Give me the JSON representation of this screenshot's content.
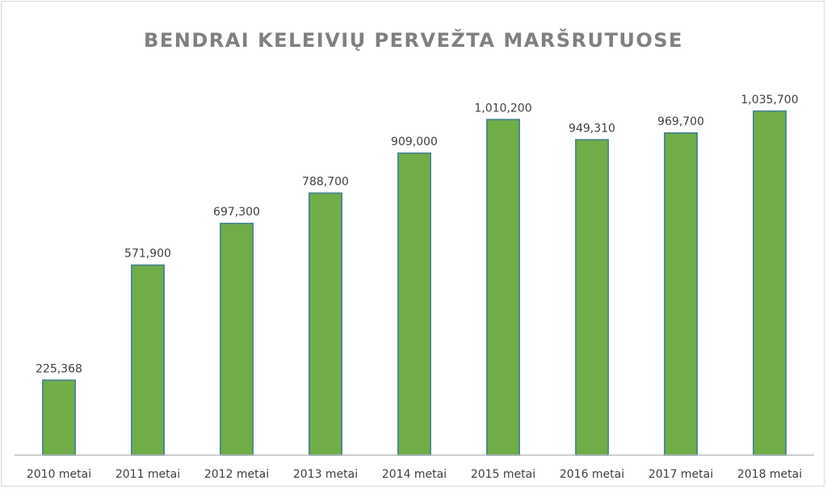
{
  "chart_data": {
    "type": "bar",
    "title": "BENDRAI KELEIVIŲ PERVEŽTA MARŠRUTUOSE",
    "xlabel": "",
    "ylabel": "",
    "categories": [
      "2010 metai",
      "2011 metai",
      "2012 metai",
      "2013 metai",
      "2014 metai",
      "2015 metai",
      "2016 metai",
      "2017 metai",
      "2018 metai"
    ],
    "values": [
      225368,
      571900,
      697300,
      788700,
      909000,
      1010200,
      949310,
      969700,
      1035700
    ],
    "value_labels": [
      "225,368",
      "571,900",
      "697,300",
      "788,700",
      "909,000",
      "1,010,200",
      "949,310",
      "969,700",
      "1,035,700"
    ],
    "ylim": [
      0,
      1040000
    ],
    "grid": false,
    "legend": "none",
    "colors": {
      "bar_fill": "#70ad47",
      "bar_edge": "#4f8a8b",
      "axis": "#bfbfbf",
      "label": "#404040",
      "title": "#808080"
    }
  }
}
